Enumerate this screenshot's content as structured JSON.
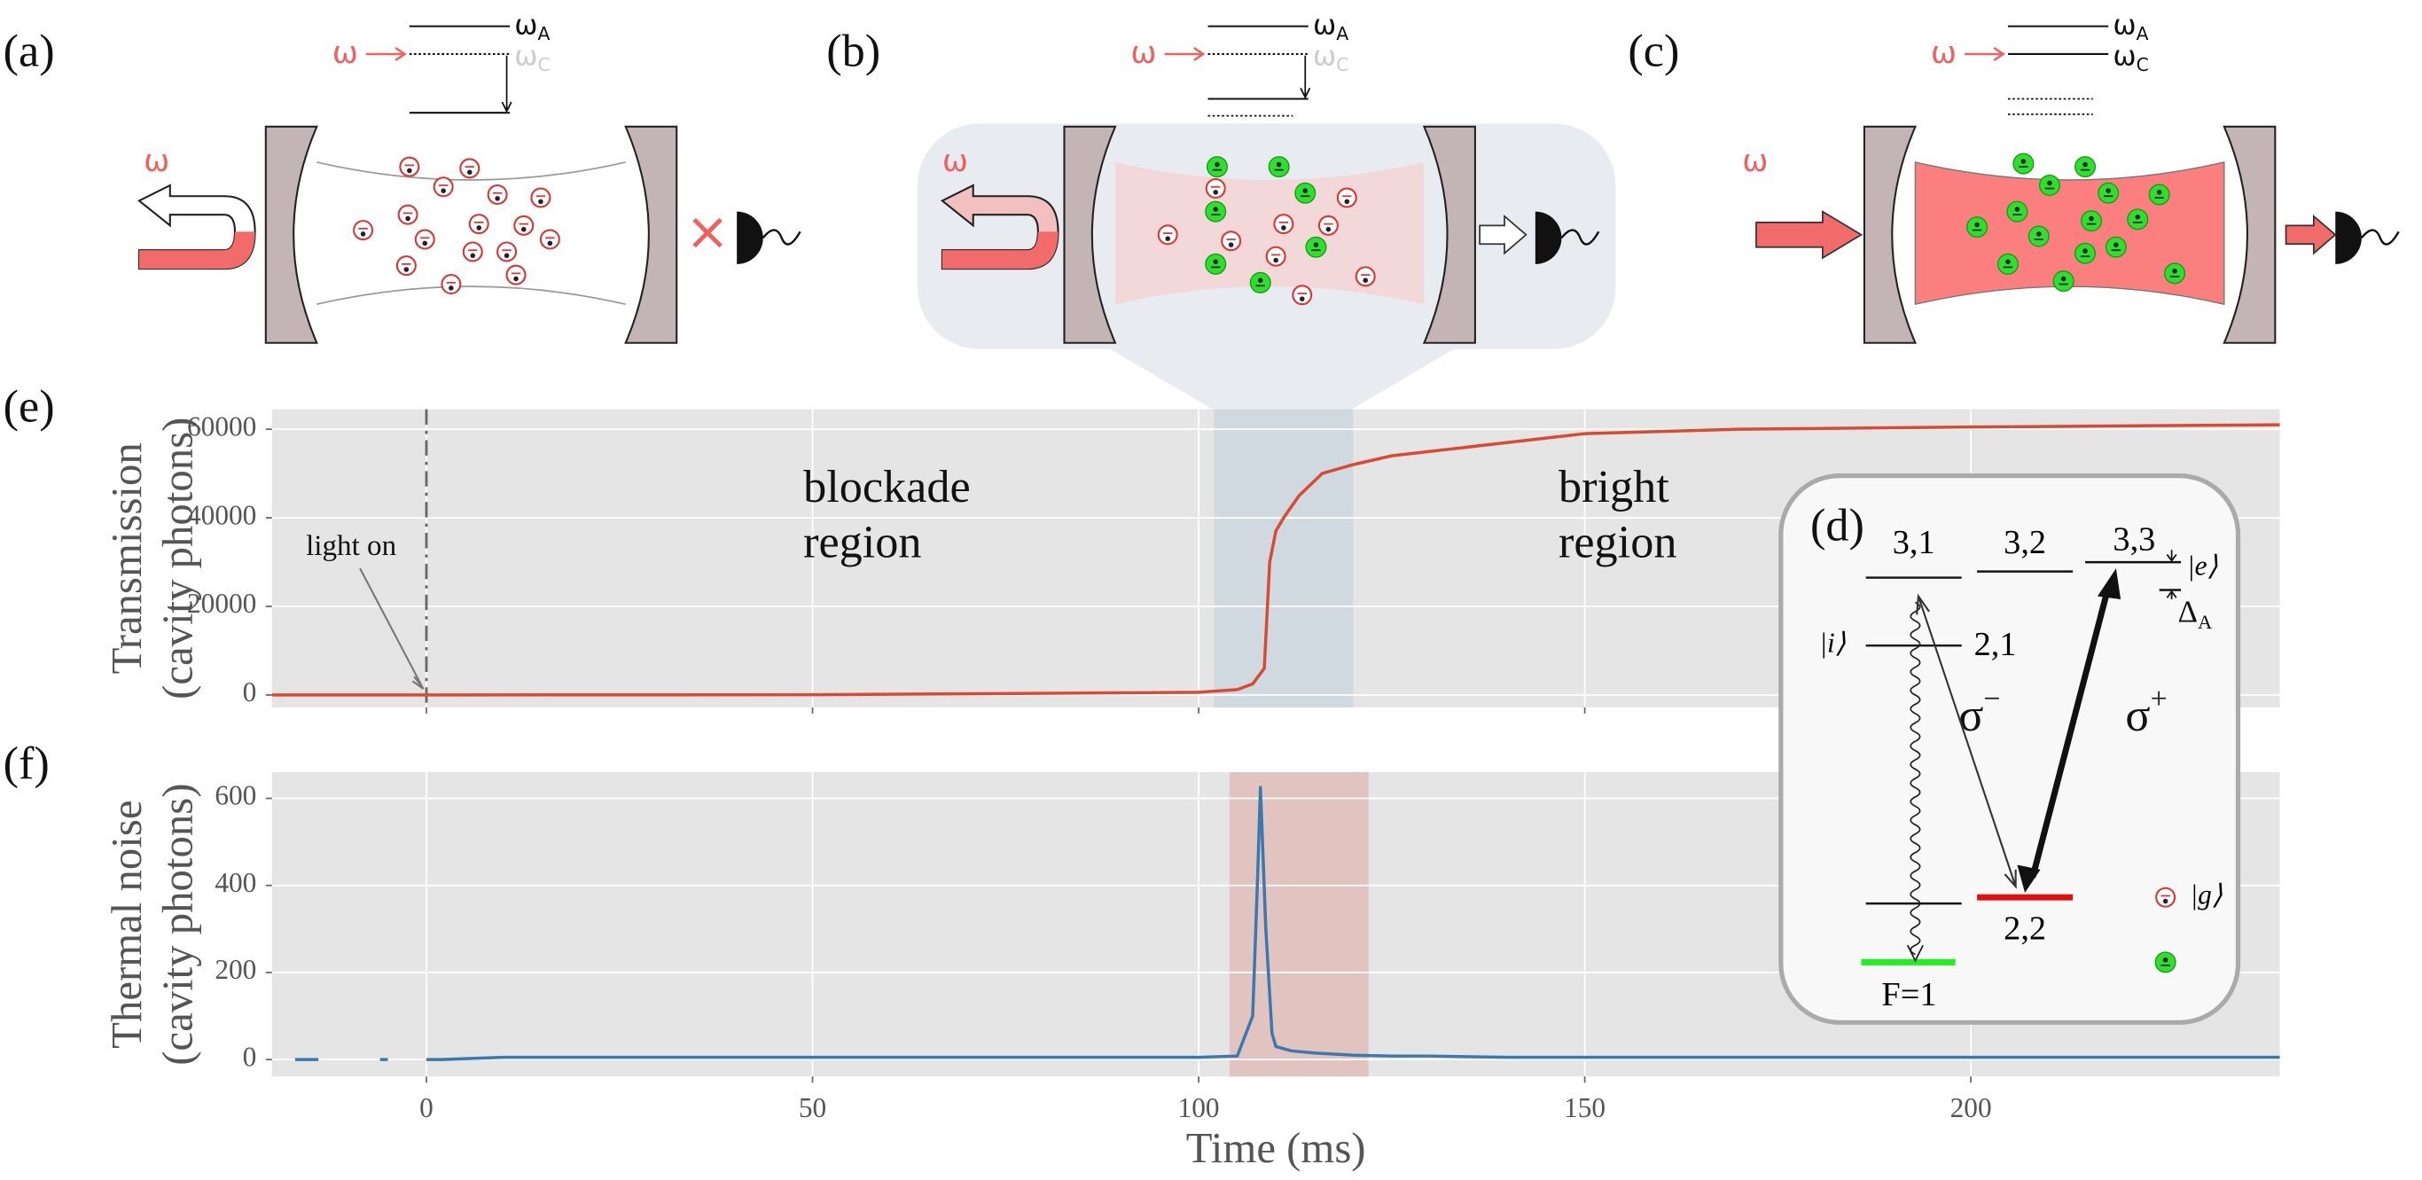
{
  "panels": {
    "a": {
      "label": "(a)",
      "omega": "ω",
      "cross": "×",
      "levels": [
        {
          "symbol": "ω",
          "sub": "A"
        },
        {
          "symbol": "ω",
          "sub": "C"
        },
        {
          "symbol": "ω",
          "sub": "C"
        }
      ]
    },
    "b": {
      "label": "(b)",
      "omega": "ω",
      "levels": [
        {
          "symbol": "ω",
          "sub": "A"
        },
        {
          "symbol": "ω",
          "sub": "C"
        },
        {
          "symbol": "ω",
          "sub": "C"
        }
      ]
    },
    "c": {
      "label": "(c)",
      "omega": "ω",
      "levels": [
        {
          "symbol": "ω",
          "sub": "A"
        },
        {
          "symbol": "ω",
          "sub": "C"
        }
      ]
    },
    "d": {
      "label": "(d)",
      "level_31": "3,1",
      "level_32": "3,2",
      "level_33": "3,3",
      "ket_e": "|e⟩",
      "detuning": {
        "symbol": "Δ",
        "sub": "A"
      },
      "ket_i": "|i⟩",
      "level_21": "2,1",
      "sigma_minus": {
        "symbol": "σ",
        "sup": "−"
      },
      "sigma_plus": {
        "symbol": "σ",
        "sup": "+"
      },
      "level_22": "2,2",
      "f1": "F=1",
      "ket_g": "|g⟩"
    }
  },
  "chart_data": [
    {
      "type": "line",
      "label": "(e)",
      "ylabel": [
        "Transmission",
        "(cavity photons)"
      ],
      "xlim": [
        -20,
        240
      ],
      "xticks": [
        0,
        50,
        100,
        150,
        200
      ],
      "tick_labels_x": false,
      "ylim": [
        -2800,
        64500
      ],
      "yticks": [
        0,
        20000,
        40000,
        60000
      ],
      "grid": true,
      "vline": 0,
      "vline_label": "light on",
      "annotations": [
        [
          "blockade",
          "region"
        ],
        [
          "bright",
          "region"
        ]
      ],
      "shaded_span": {
        "start": 102,
        "end": 120,
        "color": "#cdd6df"
      },
      "x": [
        -20,
        50,
        100,
        105,
        107,
        108.5,
        109.2,
        110,
        111,
        113,
        116,
        120,
        125,
        130,
        140,
        150,
        170,
        200,
        240
      ],
      "series": [
        {
          "name": "Transmission",
          "color": "#d84a32",
          "values": [
            0,
            50,
            600,
            1200,
            2500,
            6000,
            30000,
            37000,
            40000,
            45000,
            50000,
            52000,
            54000,
            55000,
            57000,
            59000,
            60000,
            60500,
            61000
          ]
        }
      ]
    },
    {
      "type": "line",
      "label": "(f)",
      "ylabel": [
        "Thermal noise",
        "(cavity photons)"
      ],
      "xlabel": "Time (ms)",
      "xlim": [
        -20,
        240
      ],
      "xticks": [
        0,
        50,
        100,
        150,
        200
      ],
      "tick_labels_x": true,
      "ylim": [
        -39,
        660
      ],
      "yticks": [
        0,
        200,
        400,
        600
      ],
      "grid": true,
      "shaded_span": {
        "start": 104,
        "end": 122,
        "color": "#e0bdb8"
      },
      "x": [
        -17,
        -14,
        -13,
        -6,
        -5,
        -4,
        0,
        2,
        10,
        50,
        100,
        105,
        107,
        107.6,
        108,
        108.7,
        109.5,
        110,
        112,
        115,
        120,
        125,
        130,
        140,
        170,
        200,
        240
      ],
      "series": [
        {
          "name": "Thermal noise",
          "color": "#3a78b0",
          "values": [
            0,
            0,
            null,
            0,
            0,
            null,
            0,
            0,
            5,
            5,
            5,
            8,
            100,
            400,
            625,
            300,
            60,
            30,
            20,
            15,
            10,
            8,
            8,
            5,
            5,
            5,
            5
          ]
        }
      ]
    }
  ]
}
